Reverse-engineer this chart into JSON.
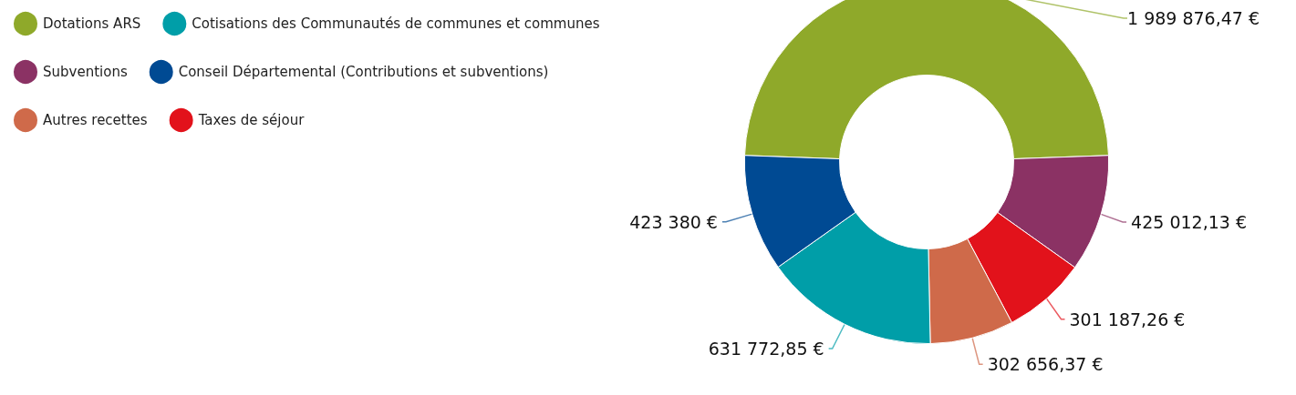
{
  "chart_data": {
    "type": "donut",
    "categories": [
      "Dotations ARS",
      "Subventions",
      "Taxes de séjour",
      "Autres recettes",
      "Cotisations des Communautés de communes et communes",
      "Conseil Départemental (Contributions et subventions)"
    ],
    "values": [
      1989876.47,
      425012.13,
      301187.26,
      302656.37,
      631772.85,
      423380
    ],
    "colors": [
      "#8fa92a",
      "#8b3264",
      "#e2121b",
      "#cf6a4a",
      "#009ea8",
      "#004a93"
    ],
    "value_labels": [
      "1 989 876,47 €",
      "425 012,13 €",
      "301 187,26 €",
      "302 656,37 €",
      "631 772,85 €",
      "423 380 €"
    ],
    "legend": "top left"
  }
}
